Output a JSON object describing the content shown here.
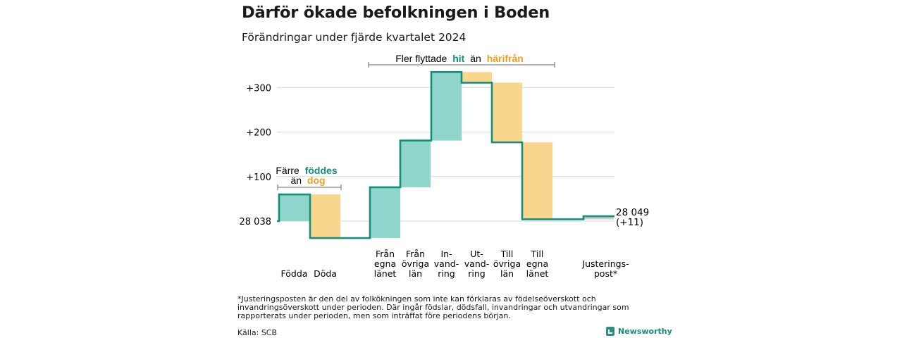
{
  "title": "Därför ökade befolkningen i Boden",
  "subtitle": "Förändringar under fjärde kvartalet 2024",
  "note": "*Justeringsposten är den del av folkökningen som inte kan förklaras av födelseöverskott och invandringsöverskott under perioden. Där ingår födslar, dödsfall, invandringar och utvandringar som rapporterats under perioden, men som inträffat före periodens början.",
  "source": "Källa: SCB",
  "brand": "Newsworthy",
  "colors": {
    "increase": "#8fd5cb",
    "decrease": "#f9d68e",
    "line": "#138f7a",
    "hit": "#138f7a",
    "harifran": "#f0a020",
    "grid": "#d9d9d9",
    "adjustment": "#cccccc"
  },
  "annotations": {
    "born": {
      "prefix": "Färre",
      "hi1": "föddes",
      "line2_prefix": "än",
      "hi2": "dog"
    },
    "moved": {
      "prefix": "Fler flyttade",
      "hi1": "hit",
      "mid": "än",
      "hi2": "härifrån"
    }
  },
  "chart_data": {
    "type": "waterfall",
    "title": "Därför ökade befolkningen i Boden",
    "subtitle": "Förändringar under fjärde kvartalet 2024",
    "base_value": 28038,
    "base_label": "28 038",
    "end_label": "28 049",
    "end_change": "(+11)",
    "y_ticks": [
      {
        "value": 100,
        "label": "+100"
      },
      {
        "value": 200,
        "label": "+200"
      },
      {
        "value": 300,
        "label": "+300"
      }
    ],
    "ylim": [
      -50,
      350
    ],
    "grid": true,
    "steps": [
      {
        "label": [
          "",
          "Födda"
        ],
        "from": 0,
        "to": 60,
        "kind": "increase"
      },
      {
        "label": [
          "",
          "Döda"
        ],
        "from": 60,
        "to": -38,
        "kind": "decrease"
      },
      {
        "label": [
          "Från",
          "egna",
          "länet"
        ],
        "from": -38,
        "to": 76,
        "kind": "increase"
      },
      {
        "label": [
          "Från",
          "övriga",
          "län"
        ],
        "from": 76,
        "to": 181,
        "kind": "increase"
      },
      {
        "label": [
          "In-",
          "vand-",
          "ring"
        ],
        "from": 181,
        "to": 335,
        "kind": "increase"
      },
      {
        "label": [
          "Ut-",
          "vand-",
          "ring"
        ],
        "from": 335,
        "to": 311,
        "kind": "decrease"
      },
      {
        "label": [
          "Till",
          "övriga",
          "län"
        ],
        "from": 311,
        "to": 177,
        "kind": "decrease"
      },
      {
        "label": [
          "Till",
          "egna",
          "länet"
        ],
        "from": 177,
        "to": 4,
        "kind": "decrease"
      },
      {
        "label": [
          "Justerings-",
          "post*"
        ],
        "from": 4,
        "to": 11,
        "kind": "adjustment"
      }
    ]
  }
}
